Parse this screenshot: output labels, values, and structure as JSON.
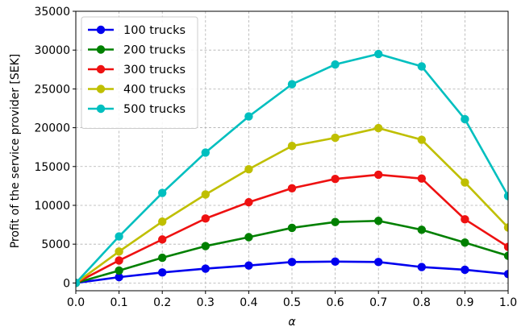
{
  "chart_data": {
    "type": "line",
    "title": "",
    "xlabel": "α",
    "ylabel": "Profit of the service provider [SEK]",
    "xlim": [
      0.0,
      1.0
    ],
    "ylim": [
      -1000,
      35000
    ],
    "xticks": [
      0.0,
      0.1,
      0.2,
      0.3,
      0.4,
      0.5,
      0.6,
      0.7,
      0.8,
      0.9,
      1.0
    ],
    "xtick_labels": [
      "0.0",
      "0.1",
      "0.2",
      "0.3",
      "0.4",
      "0.5",
      "0.6",
      "0.7",
      "0.8",
      "0.9",
      "1.0"
    ],
    "yticks": [
      0,
      5000,
      10000,
      15000,
      20000,
      25000,
      30000,
      35000
    ],
    "ytick_labels": [
      "0",
      "5000",
      "10000",
      "15000",
      "20000",
      "25000",
      "30000",
      "35000"
    ],
    "grid": true,
    "legend_position": "top-left",
    "x": [
      0.0,
      0.1,
      0.2,
      0.3,
      0.4,
      0.5,
      0.6,
      0.7,
      0.8,
      0.9,
      1.0
    ],
    "series": [
      {
        "name": "100 trucks",
        "color": "#0000ee",
        "values": [
          0,
          750,
          1350,
          1850,
          2250,
          2700,
          2750,
          2700,
          2050,
          1700,
          1150
        ]
      },
      {
        "name": "200 trucks",
        "color": "#008000",
        "values": [
          0,
          1600,
          3250,
          4750,
          5900,
          7100,
          7850,
          8000,
          6850,
          5200,
          3500
        ]
      },
      {
        "name": "300 trucks",
        "color": "#ee1111",
        "values": [
          0,
          2900,
          5600,
          8300,
          10400,
          12200,
          13400,
          13950,
          13450,
          8200,
          4650
        ]
      },
      {
        "name": "400 trucks",
        "color": "#bfbf00",
        "values": [
          0,
          4050,
          7900,
          11400,
          14650,
          17650,
          18700,
          19950,
          18450,
          12950,
          7150
        ]
      },
      {
        "name": "500 trucks",
        "color": "#00bfbf",
        "values": [
          0,
          6000,
          11600,
          16800,
          21450,
          25600,
          28150,
          29500,
          27900,
          21100,
          11200
        ]
      }
    ]
  }
}
